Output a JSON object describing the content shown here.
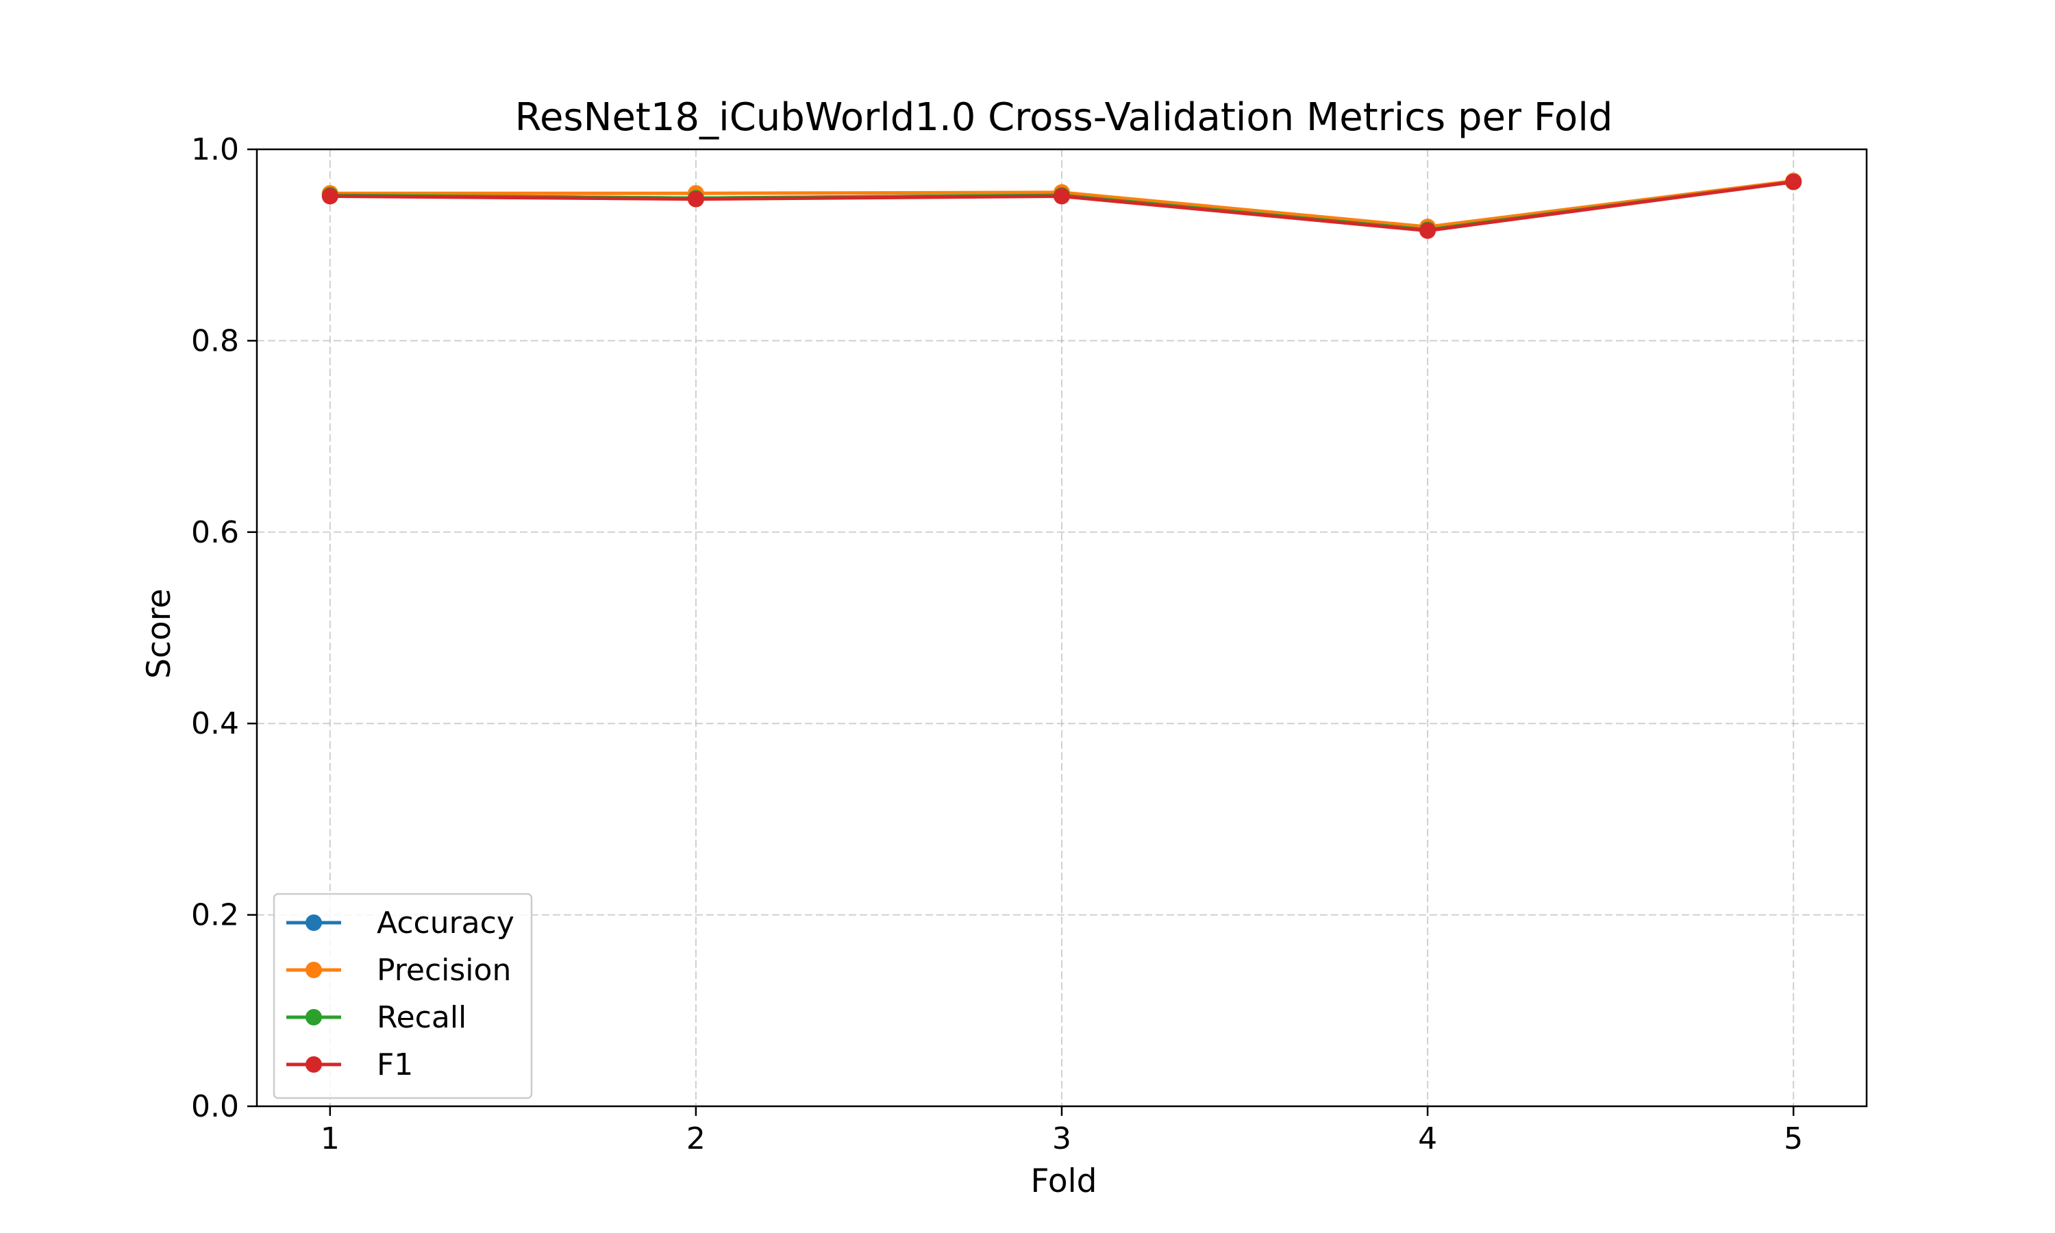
{
  "chart_data": {
    "type": "line",
    "title": "ResNet18_iCubWorld1.0 Cross-Validation Metrics per Fold",
    "xlabel": "Fold",
    "ylabel": "Score",
    "x": [
      1,
      2,
      3,
      4,
      5
    ],
    "xticks": [
      "1",
      "2",
      "3",
      "4",
      "5"
    ],
    "xlim": [
      0.8,
      5.2
    ],
    "ylim": [
      0.0,
      1.0
    ],
    "yticks": [
      "0.0",
      "0.2",
      "0.4",
      "0.6",
      "0.8",
      "1.0"
    ],
    "grid": true,
    "legend_position": "lower-left",
    "series": [
      {
        "name": "Accuracy",
        "color": "#1f77b4",
        "values": [
          0.952,
          0.949,
          0.952,
          0.916,
          0.966
        ]
      },
      {
        "name": "Precision",
        "color": "#ff7f0e",
        "values": [
          0.954,
          0.954,
          0.955,
          0.919,
          0.967
        ]
      },
      {
        "name": "Recall",
        "color": "#2ca02c",
        "values": [
          0.952,
          0.949,
          0.952,
          0.916,
          0.966
        ]
      },
      {
        "name": "F1",
        "color": "#d62728",
        "values": [
          0.951,
          0.948,
          0.951,
          0.915,
          0.966
        ]
      }
    ]
  }
}
